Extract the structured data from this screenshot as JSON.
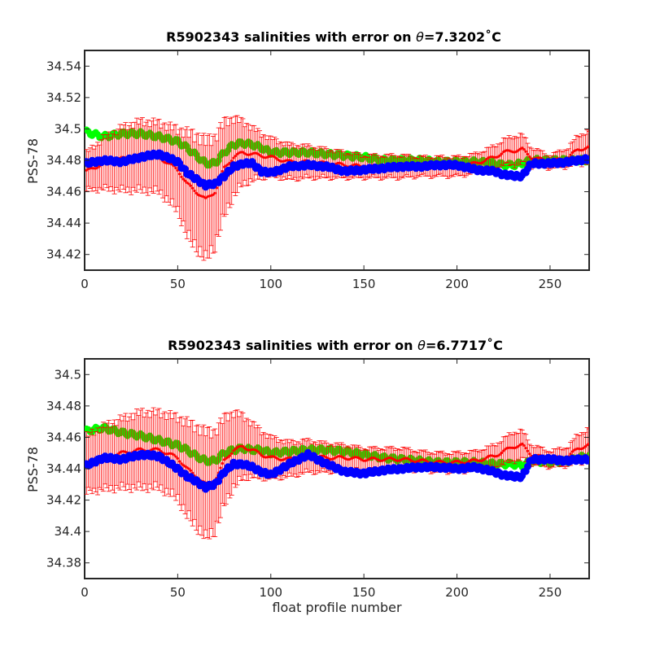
{
  "chart_data": [
    {
      "type": "scatter",
      "title": "R5902343 salinities with error on θ=7.3202˚C",
      "title_parts": {
        "lead": "R5902343 salinities with error on ",
        "symbol": "θ",
        "tail": "=7.3202˚C"
      },
      "xlabel": "",
      "ylabel": "PSS-78",
      "xlim": [
        0,
        271
      ],
      "ylim": [
        34.41,
        34.55
      ],
      "xticks": [
        0,
        50,
        100,
        150,
        200,
        250
      ],
      "yticks": [
        34.42,
        34.44,
        34.46,
        34.48,
        34.5,
        34.52,
        34.54
      ],
      "grid": false,
      "colors": {
        "mapped": "#00ff00",
        "error": "#ff0000",
        "calibrated": "#0000ff"
      },
      "anchors_x": [
        1,
        10,
        20,
        30,
        40,
        50,
        55,
        60,
        65,
        70,
        75,
        80,
        85,
        90,
        95,
        100,
        110,
        120,
        130,
        140,
        150,
        160,
        170,
        180,
        190,
        200,
        210,
        220,
        225,
        230,
        235,
        240,
        250,
        260,
        265,
        271
      ],
      "mapped_y": [
        34.498,
        34.495,
        34.497,
        34.497,
        34.495,
        34.492,
        34.488,
        34.483,
        34.478,
        34.478,
        34.485,
        34.49,
        34.491,
        34.49,
        34.488,
        34.485,
        34.485,
        34.485,
        34.484,
        34.483,
        34.482,
        34.48,
        34.48,
        34.48,
        34.479,
        34.479,
        34.479,
        34.478,
        34.477,
        34.477,
        34.478,
        34.48,
        34.48,
        34.48,
        34.48,
        34.48
      ],
      "error_center_y": [
        34.473,
        34.478,
        34.481,
        34.483,
        34.482,
        34.474,
        34.465,
        34.46,
        34.455,
        34.46,
        34.475,
        34.482,
        34.485,
        34.484,
        34.483,
        34.482,
        34.479,
        34.479,
        34.478,
        34.477,
        34.476,
        34.476,
        34.476,
        34.476,
        34.476,
        34.476,
        34.478,
        34.482,
        34.485,
        34.486,
        34.487,
        34.482,
        34.479,
        34.482,
        34.487,
        34.488
      ],
      "error_half_width": [
        0.012,
        0.016,
        0.02,
        0.022,
        0.022,
        0.026,
        0.033,
        0.036,
        0.038,
        0.035,
        0.03,
        0.025,
        0.02,
        0.017,
        0.014,
        0.012,
        0.011,
        0.01,
        0.009,
        0.008,
        0.007,
        0.007,
        0.007,
        0.006,
        0.006,
        0.006,
        0.006,
        0.007,
        0.008,
        0.009,
        0.009,
        0.006,
        0.004,
        0.006,
        0.009,
        0.01
      ],
      "calibrated_y": [
        34.478,
        34.48,
        34.479,
        34.482,
        34.484,
        34.479,
        34.472,
        34.468,
        34.464,
        34.465,
        34.47,
        34.476,
        34.478,
        34.478,
        34.473,
        34.472,
        34.476,
        34.477,
        34.476,
        34.473,
        34.474,
        34.475,
        34.476,
        34.476,
        34.477,
        34.477,
        34.474,
        34.473,
        34.471,
        34.47,
        34.47,
        34.478,
        34.478,
        34.479,
        34.48,
        34.481
      ]
    },
    {
      "type": "scatter",
      "title": "R5902343 salinities with error on θ=6.7717˚C",
      "title_parts": {
        "lead": "R5902343 salinities with error on ",
        "symbol": "θ",
        "tail": "=6.7717˚C"
      },
      "xlabel": "float profile number",
      "ylabel": "PSS-78",
      "xlim": [
        0,
        271
      ],
      "ylim": [
        34.37,
        34.51
      ],
      "xticks": [
        0,
        50,
        100,
        150,
        200,
        250
      ],
      "yticks": [
        34.38,
        34.4,
        34.42,
        34.44,
        34.46,
        34.48,
        34.5
      ],
      "grid": false,
      "colors": {
        "mapped": "#00ff00",
        "error": "#ff0000",
        "calibrated": "#0000ff"
      },
      "anchors_x": [
        1,
        10,
        20,
        30,
        40,
        50,
        55,
        60,
        65,
        70,
        75,
        80,
        85,
        90,
        95,
        100,
        110,
        120,
        130,
        140,
        150,
        160,
        170,
        180,
        190,
        200,
        210,
        220,
        225,
        230,
        235,
        240,
        250,
        260,
        265,
        271
      ],
      "mapped_y": [
        34.464,
        34.466,
        34.463,
        34.461,
        34.458,
        34.455,
        34.452,
        34.448,
        34.445,
        34.445,
        34.45,
        34.452,
        34.453,
        34.452,
        34.452,
        34.45,
        34.451,
        34.452,
        34.452,
        34.451,
        34.449,
        34.447,
        34.446,
        34.445,
        34.444,
        34.444,
        34.444,
        34.443,
        34.443,
        34.443,
        34.442,
        34.445,
        34.444,
        34.445,
        34.447,
        34.448
      ],
      "error_center_y": [
        34.443,
        34.447,
        34.45,
        34.452,
        34.452,
        34.447,
        34.44,
        34.435,
        34.43,
        34.432,
        34.445,
        34.452,
        34.454,
        34.452,
        34.449,
        34.447,
        34.446,
        34.448,
        34.447,
        34.447,
        34.446,
        34.446,
        34.446,
        34.445,
        34.444,
        34.444,
        34.445,
        34.448,
        34.451,
        34.454,
        34.455,
        34.449,
        34.446,
        34.448,
        34.453,
        34.455
      ],
      "error_half_width": [
        0.018,
        0.02,
        0.022,
        0.024,
        0.024,
        0.026,
        0.03,
        0.032,
        0.034,
        0.032,
        0.028,
        0.024,
        0.02,
        0.017,
        0.015,
        0.013,
        0.011,
        0.01,
        0.009,
        0.008,
        0.007,
        0.007,
        0.007,
        0.006,
        0.006,
        0.006,
        0.006,
        0.007,
        0.008,
        0.009,
        0.009,
        0.006,
        0.005,
        0.006,
        0.009,
        0.01
      ],
      "calibrated_y": [
        34.442,
        34.447,
        34.446,
        34.449,
        34.448,
        34.44,
        34.435,
        34.432,
        34.428,
        34.43,
        34.438,
        34.443,
        34.443,
        34.441,
        34.438,
        34.436,
        34.443,
        34.449,
        34.443,
        34.438,
        34.437,
        34.439,
        34.44,
        34.441,
        34.441,
        34.44,
        34.441,
        34.438,
        34.436,
        34.435,
        34.435,
        34.446,
        34.446,
        34.445,
        34.446,
        34.446
      ]
    }
  ]
}
